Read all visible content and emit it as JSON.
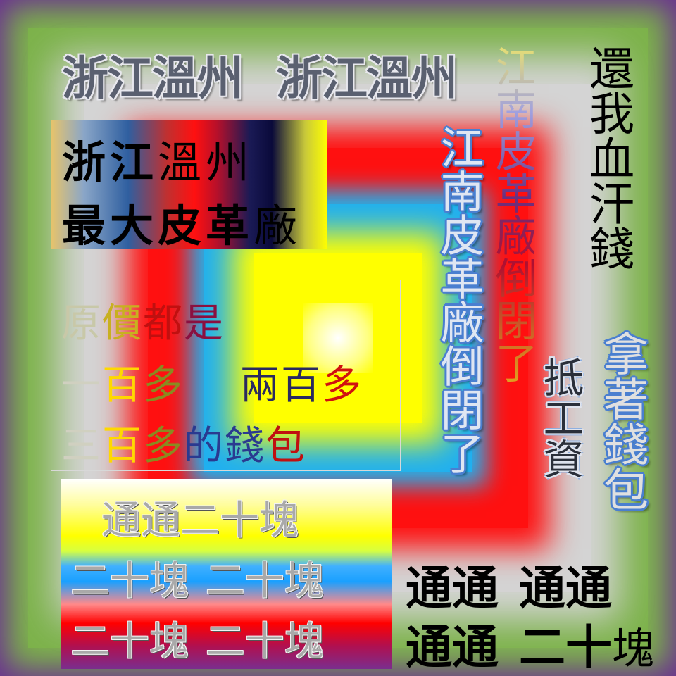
{
  "colors": {
    "purple": "#6a2e92",
    "green": "#7cb24a",
    "silver": "#d7d7d7",
    "red": "#ff1010",
    "cyan": "#20b0f0",
    "yellow": "#ffff00"
  },
  "headline": {
    "left": "浙江溫州",
    "right": "浙江溫州"
  },
  "box1": {
    "line1": [
      "浙",
      "江",
      "溫",
      "州"
    ],
    "line2": [
      "最",
      "大",
      "皮",
      "革",
      "廠"
    ]
  },
  "box2": {
    "line1": [
      "原",
      "價",
      "都",
      "是"
    ],
    "line2a": [
      "一",
      "百",
      "多"
    ],
    "line2b": [
      "兩",
      "百",
      "多"
    ],
    "line3": [
      "三",
      "百",
      "多",
      "的",
      "錢",
      "包"
    ]
  },
  "box3": {
    "line1": "通通二十塊",
    "line2": "二十塊 二十塊",
    "line3": "二十塊 二十塊"
  },
  "vertical": {
    "col_a": "江南皮革廠倒閉了",
    "col_b": "江南皮革廠倒閉了",
    "col_c": "還我血汗錢",
    "col_d": "拿著錢包",
    "col_e": "抵工資"
  },
  "bottom_right": {
    "line1": "通通 通通",
    "line2_bold": "通通 二十",
    "line2_tail": "塊"
  }
}
